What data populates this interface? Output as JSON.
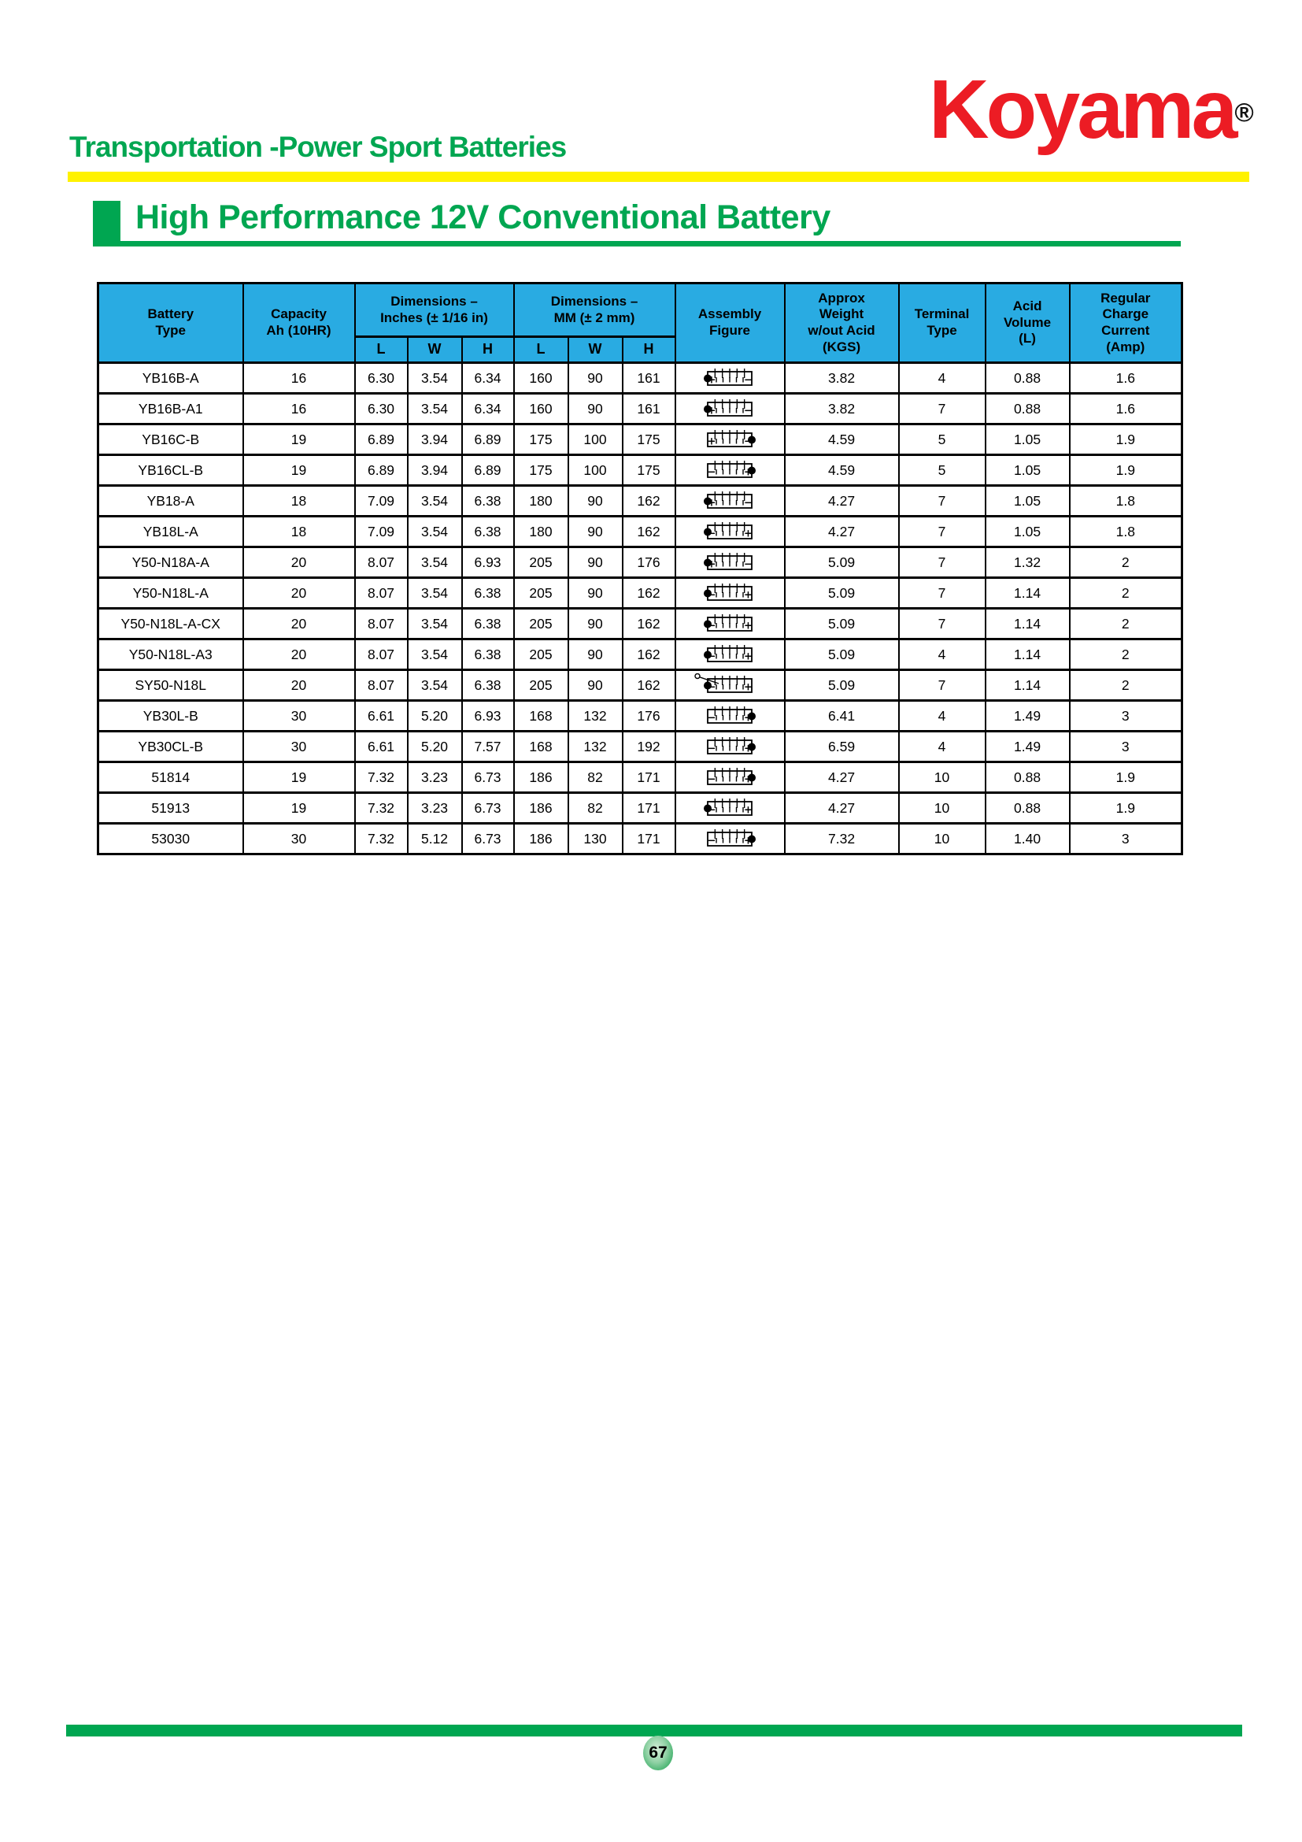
{
  "header": {
    "category_title": "Transportation -Power Sport Batteries",
    "brand": "Koyama",
    "registered_mark": "®"
  },
  "section": {
    "title": "High Performance 12V Conventional Battery"
  },
  "table": {
    "column_headers": {
      "battery_type": "Battery\nType",
      "capacity": "Capacity\nAh (10HR)",
      "dims_inches": "Dimensions –\nInches (± 1/16 in)",
      "dims_mm": "Dimensions –\nMM (± 2 mm)",
      "assembly_figure": "Assembly\nFigure",
      "approx_weight": "Approx\nWeight\nw/out Acid\n(KGS)",
      "terminal_type": "Terminal\nType",
      "acid_volume": "Acid\nVolume\n(L)",
      "charge_current": "Regular\nCharge\nCurrent\n(Amp)"
    },
    "sub_headers": [
      "L",
      "W",
      "H",
      "L",
      "W",
      "H"
    ],
    "rows": [
      {
        "battery_type": "YB16B-A",
        "capacity": "16",
        "inches": {
          "l": "6.30",
          "w": "3.54",
          "h": "6.34"
        },
        "mm": {
          "l": "160",
          "w": "90",
          "h": "161"
        },
        "figure": {
          "icon": "battery-figure-icon",
          "bump": "left",
          "left_sign": "+",
          "right_sign": "−",
          "vent_tube": false
        },
        "weight_kgs": "3.82",
        "terminal_type": "4",
        "acid_volume_l": "0.88",
        "charge_current_amp": "1.6"
      },
      {
        "battery_type": "YB16B-A1",
        "capacity": "16",
        "inches": {
          "l": "6.30",
          "w": "3.54",
          "h": "6.34"
        },
        "mm": {
          "l": "160",
          "w": "90",
          "h": "161"
        },
        "figure": {
          "icon": "battery-figure-icon",
          "bump": "left",
          "left_sign": "+",
          "right_sign": "−",
          "vent_tube": false
        },
        "weight_kgs": "3.82",
        "terminal_type": "7",
        "acid_volume_l": "0.88",
        "charge_current_amp": "1.6"
      },
      {
        "battery_type": "YB16C-B",
        "capacity": "19",
        "inches": {
          "l": "6.89",
          "w": "3.94",
          "h": "6.89"
        },
        "mm": {
          "l": "175",
          "w": "100",
          "h": "175"
        },
        "figure": {
          "icon": "battery-figure-icon",
          "bump": "right",
          "left_sign": "+",
          "right_sign": "−",
          "vent_tube": false
        },
        "weight_kgs": "4.59",
        "terminal_type": "5",
        "acid_volume_l": "1.05",
        "charge_current_amp": "1.9"
      },
      {
        "battery_type": "YB16CL-B",
        "capacity": "19",
        "inches": {
          "l": "6.89",
          "w": "3.94",
          "h": "6.89"
        },
        "mm": {
          "l": "175",
          "w": "100",
          "h": "175"
        },
        "figure": {
          "icon": "battery-figure-icon",
          "bump": "right",
          "left_sign": "−",
          "right_sign": "+",
          "vent_tube": false
        },
        "weight_kgs": "4.59",
        "terminal_type": "5",
        "acid_volume_l": "1.05",
        "charge_current_amp": "1.9"
      },
      {
        "battery_type": "YB18-A",
        "capacity": "18",
        "inches": {
          "l": "7.09",
          "w": "3.54",
          "h": "6.38"
        },
        "mm": {
          "l": "180",
          "w": "90",
          "h": "162"
        },
        "figure": {
          "icon": "battery-figure-icon",
          "bump": "left",
          "left_sign": "+",
          "right_sign": "−",
          "vent_tube": false
        },
        "weight_kgs": "4.27",
        "terminal_type": "7",
        "acid_volume_l": "1.05",
        "charge_current_amp": "1.8"
      },
      {
        "battery_type": "YB18L-A",
        "capacity": "18",
        "inches": {
          "l": "7.09",
          "w": "3.54",
          "h": "6.38"
        },
        "mm": {
          "l": "180",
          "w": "90",
          "h": "162"
        },
        "figure": {
          "icon": "battery-figure-icon",
          "bump": "left",
          "left_sign": "−",
          "right_sign": "+",
          "vent_tube": false
        },
        "weight_kgs": "4.27",
        "terminal_type": "7",
        "acid_volume_l": "1.05",
        "charge_current_amp": "1.8"
      },
      {
        "battery_type": "Y50-N18A-A",
        "capacity": "20",
        "inches": {
          "l": "8.07",
          "w": "3.54",
          "h": "6.93"
        },
        "mm": {
          "l": "205",
          "w": "90",
          "h": "176"
        },
        "figure": {
          "icon": "battery-figure-icon",
          "bump": "left",
          "left_sign": "+",
          "right_sign": "−",
          "vent_tube": false
        },
        "weight_kgs": "5.09",
        "terminal_type": "7",
        "acid_volume_l": "1.32",
        "charge_current_amp": "2"
      },
      {
        "battery_type": "Y50-N18L-A",
        "capacity": "20",
        "inches": {
          "l": "8.07",
          "w": "3.54",
          "h": "6.38"
        },
        "mm": {
          "l": "205",
          "w": "90",
          "h": "162"
        },
        "figure": {
          "icon": "battery-figure-icon",
          "bump": "left",
          "left_sign": "−",
          "right_sign": "+",
          "vent_tube": false
        },
        "weight_kgs": "5.09",
        "terminal_type": "7",
        "acid_volume_l": "1.14",
        "charge_current_amp": "2"
      },
      {
        "battery_type": "Y50-N18L-A-CX",
        "capacity": "20",
        "inches": {
          "l": "8.07",
          "w": "3.54",
          "h": "6.38"
        },
        "mm": {
          "l": "205",
          "w": "90",
          "h": "162"
        },
        "figure": {
          "icon": "battery-figure-icon",
          "bump": "left",
          "left_sign": "−",
          "right_sign": "+",
          "vent_tube": false
        },
        "weight_kgs": "5.09",
        "terminal_type": "7",
        "acid_volume_l": "1.14",
        "charge_current_amp": "2"
      },
      {
        "battery_type": "Y50-N18L-A3",
        "capacity": "20",
        "inches": {
          "l": "8.07",
          "w": "3.54",
          "h": "6.38"
        },
        "mm": {
          "l": "205",
          "w": "90",
          "h": "162"
        },
        "figure": {
          "icon": "battery-figure-icon",
          "bump": "left",
          "left_sign": "−",
          "right_sign": "+",
          "vent_tube": false
        },
        "weight_kgs": "5.09",
        "terminal_type": "4",
        "acid_volume_l": "1.14",
        "charge_current_amp": "2"
      },
      {
        "battery_type": "SY50-N18L",
        "capacity": "20",
        "inches": {
          "l": "8.07",
          "w": "3.54",
          "h": "6.38"
        },
        "mm": {
          "l": "205",
          "w": "90",
          "h": "162"
        },
        "figure": {
          "icon": "battery-figure-vent-icon",
          "bump": "left",
          "left_sign": "−",
          "right_sign": "+",
          "vent_tube": true
        },
        "weight_kgs": "5.09",
        "terminal_type": "7",
        "acid_volume_l": "1.14",
        "charge_current_amp": "2"
      },
      {
        "battery_type": "YB30L-B",
        "capacity": "30",
        "inches": {
          "l": "6.61",
          "w": "5.20",
          "h": "6.93"
        },
        "mm": {
          "l": "168",
          "w": "132",
          "h": "176"
        },
        "figure": {
          "icon": "battery-figure-icon",
          "bump": "right",
          "left_sign": "−",
          "right_sign": "+",
          "vent_tube": false
        },
        "weight_kgs": "6.41",
        "terminal_type": "4",
        "acid_volume_l": "1.49",
        "charge_current_amp": "3"
      },
      {
        "battery_type": "YB30CL-B",
        "capacity": "30",
        "inches": {
          "l": "6.61",
          "w": "5.20",
          "h": "7.57"
        },
        "mm": {
          "l": "168",
          "w": "132",
          "h": "192"
        },
        "figure": {
          "icon": "battery-figure-icon",
          "bump": "right",
          "left_sign": "−",
          "right_sign": "+",
          "vent_tube": false
        },
        "weight_kgs": "6.59",
        "terminal_type": "4",
        "acid_volume_l": "1.49",
        "charge_current_amp": "3"
      },
      {
        "battery_type": "51814",
        "capacity": "19",
        "inches": {
          "l": "7.32",
          "w": "3.23",
          "h": "6.73"
        },
        "mm": {
          "l": "186",
          "w": "82",
          "h": "171"
        },
        "figure": {
          "icon": "battery-figure-icon",
          "bump": "right",
          "left_sign": "−",
          "right_sign": "+",
          "vent_tube": false
        },
        "weight_kgs": "4.27",
        "terminal_type": "10",
        "acid_volume_l": "0.88",
        "charge_current_amp": "1.9"
      },
      {
        "battery_type": "51913",
        "capacity": "19",
        "inches": {
          "l": "7.32",
          "w": "3.23",
          "h": "6.73"
        },
        "mm": {
          "l": "186",
          "w": "82",
          "h": "171"
        },
        "figure": {
          "icon": "battery-figure-icon",
          "bump": "left",
          "left_sign": "−",
          "right_sign": "+",
          "vent_tube": false
        },
        "weight_kgs": "4.27",
        "terminal_type": "10",
        "acid_volume_l": "0.88",
        "charge_current_amp": "1.9"
      },
      {
        "battery_type": "53030",
        "capacity": "30",
        "inches": {
          "l": "7.32",
          "w": "5.12",
          "h": "6.73"
        },
        "mm": {
          "l": "186",
          "w": "130",
          "h": "171"
        },
        "figure": {
          "icon": "battery-figure-icon",
          "bump": "right",
          "left_sign": "−",
          "right_sign": "+",
          "vent_tube": false
        },
        "weight_kgs": "7.32",
        "terminal_type": "10",
        "acid_volume_l": "1.40",
        "charge_current_amp": "3"
      }
    ]
  },
  "footer": {
    "page_number": "67"
  },
  "colors": {
    "brand_red": "#EC1C24",
    "accent_green": "#00A651",
    "divider_yellow": "#FFF200",
    "table_header_blue": "#29ABE2",
    "border_black": "#000000"
  }
}
